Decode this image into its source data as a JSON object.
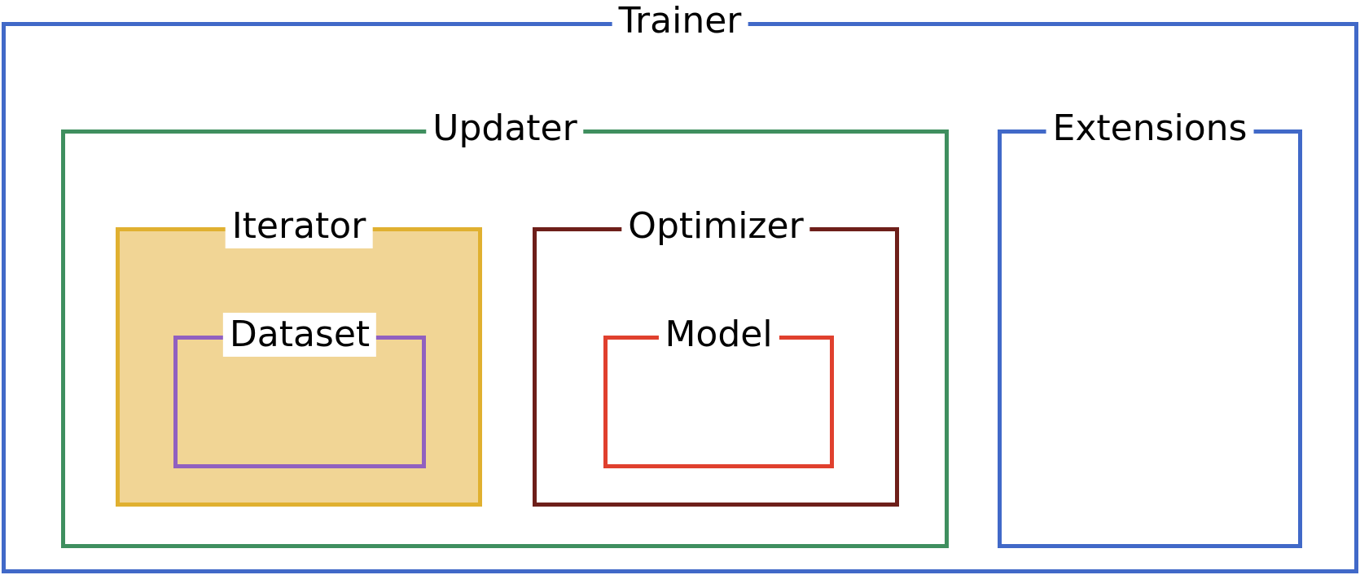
{
  "diagram": {
    "trainer": {
      "label": "Trainer",
      "border_color": "#4169c8"
    },
    "updater": {
      "label": "Updater",
      "border_color": "#3f8f5f"
    },
    "extensions": {
      "label": "Extensions",
      "border_color": "#4169c8"
    },
    "iterator": {
      "label": "Iterator",
      "border_color": "#e0b030",
      "fill_color": "#f1d595"
    },
    "dataset": {
      "label": "Dataset",
      "border_color": "#9160c0"
    },
    "optimizer": {
      "label": "Optimizer",
      "border_color": "#6e1f1a"
    },
    "model": {
      "label": "Model",
      "border_color": "#e0402e"
    }
  }
}
